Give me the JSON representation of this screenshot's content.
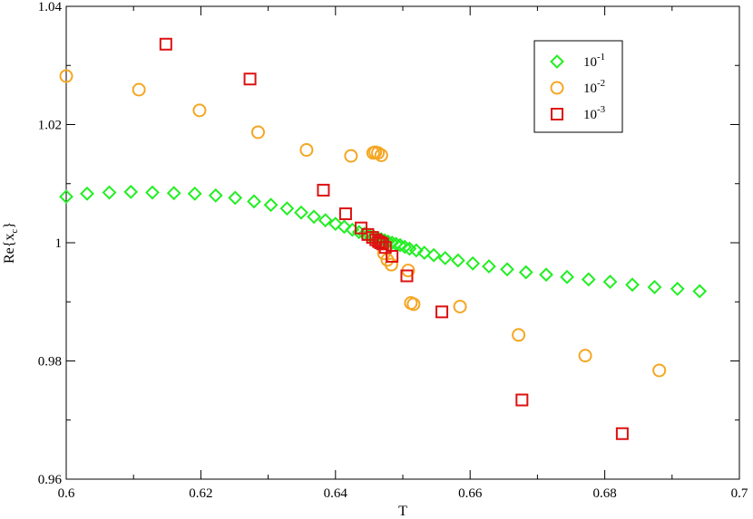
{
  "chart_data": {
    "type": "scatter",
    "xlabel": "T",
    "ylabel": "Re{x",
    "ylabel_sub": "c",
    "ylabel_close": "}",
    "xlim": [
      0.6,
      0.7
    ],
    "ylim": [
      0.96,
      1.04
    ],
    "xticks": [
      0.6,
      0.62,
      0.64,
      0.66,
      0.68,
      0.7
    ],
    "xtick_labels": [
      "0.6",
      "0.62",
      "0.64",
      "0.66",
      "0.68",
      "0.7"
    ],
    "yticks": [
      0.96,
      0.98,
      1.0,
      1.02,
      1.04
    ],
    "ytick_labels": [
      "0.96",
      "0.98",
      "1",
      "1.02",
      "1.04"
    ],
    "legend_position": "top-right",
    "series": [
      {
        "name_base": "10",
        "name_exp": "-1",
        "marker": "diamond",
        "color": "#22ee22",
        "x": [
          0.6,
          0.6031,
          0.6064,
          0.6096,
          0.6128,
          0.616,
          0.6191,
          0.6222,
          0.6251,
          0.6279,
          0.6304,
          0.6328,
          0.6349,
          0.6368,
          0.6385,
          0.64,
          0.6413,
          0.6425,
          0.6435,
          0.6443,
          0.6451,
          0.6457,
          0.6463,
          0.6468,
          0.6473,
          0.6478,
          0.6484,
          0.649,
          0.6496,
          0.6503,
          0.651,
          0.652,
          0.6532,
          0.6546,
          0.6563,
          0.6582,
          0.6604,
          0.6628,
          0.6655,
          0.6683,
          0.6713,
          0.6744,
          0.6776,
          0.6808,
          0.6841,
          0.6874,
          0.6908,
          0.6941
        ],
        "y": [
          1.0078,
          1.0083,
          1.0085,
          1.0086,
          1.0085,
          1.0084,
          1.0083,
          1.008,
          1.0076,
          1.007,
          1.0064,
          1.0058,
          1.0051,
          1.0044,
          1.0038,
          1.0032,
          1.0027,
          1.0022,
          1.0018,
          1.0015,
          1.0012,
          1.001,
          1.0008,
          1.0006,
          1.0004,
          1.0002,
          1.0,
          0.9998,
          0.9996,
          0.9993,
          0.999,
          0.9987,
          0.9983,
          0.9979,
          0.9974,
          0.997,
          0.9965,
          0.996,
          0.9955,
          0.995,
          0.9946,
          0.9942,
          0.9938,
          0.9934,
          0.9929,
          0.9925,
          0.9922,
          0.9918
        ]
      },
      {
        "name_base": "10",
        "name_exp": "-2",
        "marker": "circle",
        "color": "#f5a623",
        "x": [
          0.6,
          0.6108,
          0.6198,
          0.6285,
          0.6357,
          0.6423,
          0.6456,
          0.6459,
          0.6463,
          0.6468,
          0.6472,
          0.6477,
          0.6483,
          0.6508,
          0.6512,
          0.6516,
          0.6585,
          0.6672,
          0.6771,
          0.6881
        ],
        "y": [
          1.0282,
          1.0259,
          1.0224,
          1.0187,
          1.0157,
          1.0147,
          1.0152,
          1.0153,
          1.0152,
          1.0148,
          0.9982,
          0.9971,
          0.9963,
          0.9953,
          0.9898,
          0.9896,
          0.9892,
          0.9844,
          0.9809,
          0.9784
        ],
        "y2": [
          0.977
        ]
      },
      {
        "name_base": "10",
        "name_exp": "-3",
        "marker": "square",
        "color": "#dd1111",
        "x": [
          0.6148,
          0.6273,
          0.6382,
          0.6415,
          0.6438,
          0.6448,
          0.6455,
          0.646,
          0.6464,
          0.6467,
          0.647,
          0.6474,
          0.6484,
          0.6506,
          0.6558,
          0.6677,
          0.6826
        ],
        "y": [
          1.0336,
          1.0277,
          1.0089,
          1.0049,
          1.0025,
          1.0014,
          1.0009,
          1.0005,
          1.0002,
          1.0,
          0.9998,
          0.9992,
          0.9977,
          0.9944,
          0.9883,
          0.9734,
          0.9677
        ]
      }
    ]
  }
}
